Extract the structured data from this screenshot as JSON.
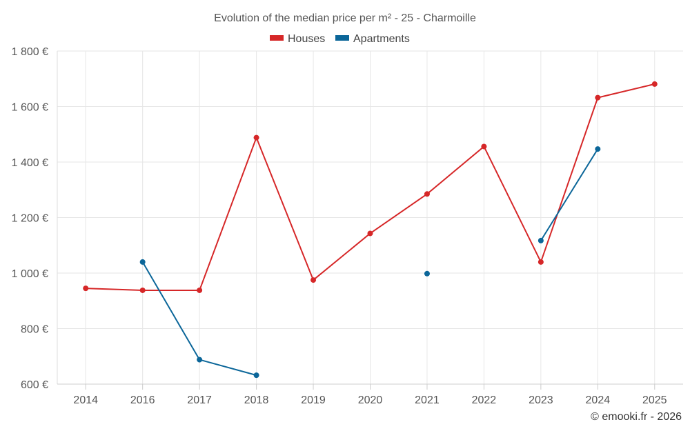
{
  "chart_data": {
    "type": "line",
    "title": "Evolution of the median price per m² - 25 - Charmoille",
    "credit": "© emooki.fr - 2026",
    "categories": [
      "2014",
      "2016",
      "2017",
      "2018",
      "2019",
      "2020",
      "2021",
      "2022",
      "2023",
      "2024",
      "2025"
    ],
    "y_ticks": [
      600,
      800,
      1000,
      1200,
      1400,
      1600,
      1800
    ],
    "y_tick_labels": [
      "600 €",
      "800 €",
      "1 000 €",
      "1 200 €",
      "1 400 €",
      "1 600 €",
      "1 800 €"
    ],
    "ylim": [
      600,
      1800
    ],
    "grid": true,
    "legend_position": "top-center",
    "series": [
      {
        "name": "Houses",
        "color": "#d62728",
        "values": [
          945,
          938,
          938,
          1488,
          975,
          1143,
          1285,
          1456,
          1040,
          1632,
          1681
        ]
      },
      {
        "name": "Apartments",
        "color": "#0b6699",
        "values": [
          null,
          1040,
          688,
          632,
          null,
          null,
          998,
          null,
          1117,
          1447,
          null
        ]
      }
    ]
  }
}
